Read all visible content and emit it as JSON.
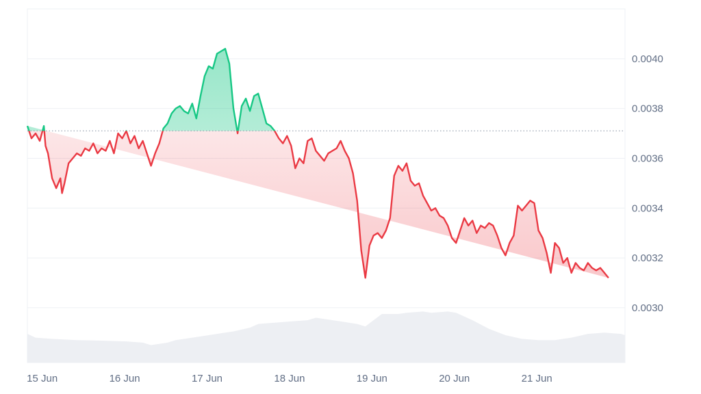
{
  "chart_data": {
    "type": "area",
    "baseline": 0.00371,
    "ylim": [
      0.00278,
      0.0042
    ],
    "y_ticks": [
      {
        "value": 0.003,
        "label": "0.0030"
      },
      {
        "value": 0.0032,
        "label": "0.0032"
      },
      {
        "value": 0.0034,
        "label": "0.0034"
      },
      {
        "value": 0.0036,
        "label": "0.0036"
      },
      {
        "value": 0.0038,
        "label": "0.0038"
      },
      {
        "value": 0.004,
        "label": "0.0040"
      }
    ],
    "x_ticks": [
      {
        "t": 0.18,
        "label": "15 Jun"
      },
      {
        "t": 1.18,
        "label": "16 Jun"
      },
      {
        "t": 2.18,
        "label": "17 Jun"
      },
      {
        "t": 3.18,
        "label": "18 Jun"
      },
      {
        "t": 4.18,
        "label": "19 Jun"
      },
      {
        "t": 5.18,
        "label": "20 Jun"
      },
      {
        "t": 6.18,
        "label": "21 Jun"
      }
    ],
    "x_domain": [
      0,
      7.25
    ],
    "price": {
      "t": [
        0.0,
        0.05,
        0.1,
        0.15,
        0.2,
        0.22,
        0.25,
        0.3,
        0.35,
        0.4,
        0.42,
        0.45,
        0.5,
        0.55,
        0.6,
        0.65,
        0.7,
        0.75,
        0.8,
        0.85,
        0.9,
        0.95,
        1.0,
        1.05,
        1.1,
        1.15,
        1.2,
        1.25,
        1.3,
        1.35,
        1.4,
        1.45,
        1.5,
        1.55,
        1.6,
        1.65,
        1.7,
        1.75,
        1.8,
        1.85,
        1.9,
        1.95,
        2.0,
        2.05,
        2.1,
        2.15,
        2.2,
        2.25,
        2.3,
        2.35,
        2.4,
        2.45,
        2.5,
        2.55,
        2.6,
        2.65,
        2.7,
        2.75,
        2.8,
        2.85,
        2.9,
        2.95,
        3.0,
        3.05,
        3.1,
        3.15,
        3.2,
        3.25,
        3.3,
        3.35,
        3.4,
        3.45,
        3.5,
        3.55,
        3.6,
        3.65,
        3.7,
        3.75,
        3.8,
        3.85,
        3.9,
        3.95,
        4.0,
        4.05,
        4.1,
        4.15,
        4.2,
        4.25,
        4.3,
        4.35,
        4.4,
        4.45,
        4.5,
        4.55,
        4.6,
        4.65,
        4.7,
        4.75,
        4.8,
        4.85,
        4.9,
        4.95,
        5.0,
        5.05,
        5.1,
        5.15,
        5.2,
        5.25,
        5.3,
        5.35,
        5.4,
        5.45,
        5.5,
        5.55,
        5.6,
        5.65,
        5.7,
        5.75,
        5.8,
        5.85,
        5.9,
        5.95,
        6.0,
        6.05,
        6.1,
        6.15,
        6.2,
        6.25,
        6.3,
        6.35,
        6.4,
        6.45,
        6.5,
        6.55,
        6.6,
        6.65,
        6.7,
        6.75,
        6.8,
        6.85,
        6.9,
        6.95,
        7.0,
        7.05,
        7.1,
        7.15
      ],
      "v": [
        0.00373,
        0.00368,
        0.0037,
        0.00367,
        0.00373,
        0.00365,
        0.00362,
        0.00352,
        0.00348,
        0.00352,
        0.00346,
        0.0035,
        0.00358,
        0.0036,
        0.00362,
        0.00361,
        0.00364,
        0.00363,
        0.00366,
        0.00362,
        0.00364,
        0.00363,
        0.00367,
        0.00362,
        0.0037,
        0.00368,
        0.00371,
        0.00366,
        0.00369,
        0.00364,
        0.00367,
        0.00362,
        0.00357,
        0.00362,
        0.00366,
        0.00372,
        0.00374,
        0.00378,
        0.0038,
        0.00381,
        0.00379,
        0.00378,
        0.00382,
        0.00376,
        0.00385,
        0.00393,
        0.00397,
        0.00396,
        0.00402,
        0.00403,
        0.00404,
        0.00398,
        0.0038,
        0.0037,
        0.00381,
        0.00384,
        0.00379,
        0.00385,
        0.00386,
        0.0038,
        0.00374,
        0.00373,
        0.00371,
        0.00368,
        0.00366,
        0.00369,
        0.00365,
        0.00356,
        0.0036,
        0.00358,
        0.00367,
        0.00368,
        0.00363,
        0.00361,
        0.00359,
        0.00362,
        0.00363,
        0.00364,
        0.00367,
        0.00363,
        0.0036,
        0.00354,
        0.00343,
        0.00323,
        0.00312,
        0.00325,
        0.00329,
        0.0033,
        0.00328,
        0.00331,
        0.00336,
        0.00353,
        0.00357,
        0.00355,
        0.00358,
        0.00351,
        0.00349,
        0.0035,
        0.00345,
        0.00342,
        0.00339,
        0.0034,
        0.00337,
        0.00336,
        0.00333,
        0.00328,
        0.00326,
        0.00331,
        0.00336,
        0.00333,
        0.00335,
        0.0033,
        0.00333,
        0.00332,
        0.00334,
        0.00333,
        0.00329,
        0.00324,
        0.00321,
        0.00326,
        0.00329,
        0.00341,
        0.00339,
        0.00341,
        0.00343,
        0.00342,
        0.00331,
        0.00328,
        0.00322,
        0.00314,
        0.00326,
        0.00324,
        0.00318,
        0.0032,
        0.00314,
        0.00318,
        0.00316,
        0.00315,
        0.00318,
        0.00316,
        0.00315,
        0.00316,
        0.00314,
        0.00312
      ]
    },
    "volume": {
      "t": [
        0.0,
        0.1,
        0.3,
        0.6,
        0.9,
        1.2,
        1.4,
        1.5,
        1.7,
        1.8,
        2.0,
        2.2,
        2.4,
        2.5,
        2.7,
        2.8,
        3.0,
        3.2,
        3.4,
        3.5,
        3.6,
        3.8,
        4.0,
        4.1,
        4.2,
        4.3,
        4.5,
        4.6,
        4.8,
        4.9,
        5.1,
        5.2,
        5.4,
        5.6,
        5.8,
        6.0,
        6.2,
        6.4,
        6.5,
        6.6,
        6.8,
        7.0,
        7.2,
        7.25
      ],
      "v": [
        0.002895,
        0.00288,
        0.002875,
        0.00287,
        0.002868,
        0.002865,
        0.00286,
        0.00285,
        0.00286,
        0.00287,
        0.00288,
        0.00289,
        0.0029,
        0.002905,
        0.00292,
        0.002935,
        0.00294,
        0.002945,
        0.00295,
        0.00296,
        0.002955,
        0.002945,
        0.002935,
        0.002925,
        0.00295,
        0.002975,
        0.002975,
        0.00298,
        0.002985,
        0.00298,
        0.002985,
        0.00298,
        0.00295,
        0.002915,
        0.00289,
        0.002875,
        0.00287,
        0.00287,
        0.002875,
        0.00288,
        0.002895,
        0.0029,
        0.002895,
        0.00289
      ]
    }
  }
}
